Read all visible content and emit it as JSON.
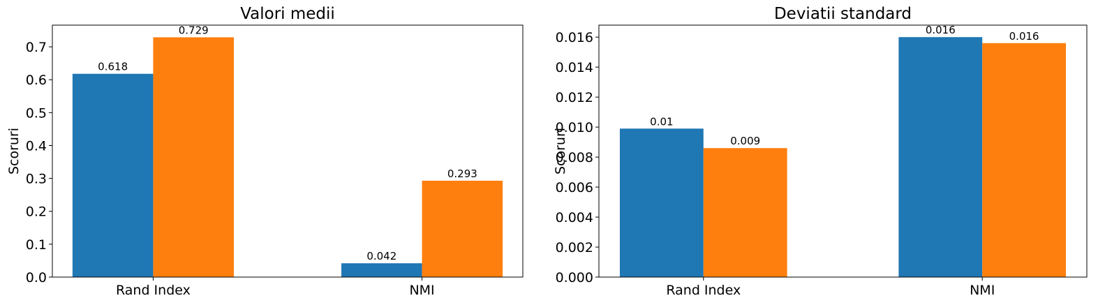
{
  "chart_data": [
    {
      "type": "bar",
      "title": "Valori medii",
      "xlabel": "",
      "ylabel": "Scoruri",
      "categories": [
        "Rand Index",
        "NMI"
      ],
      "series": [
        {
          "values": [
            0.618,
            0.042
          ],
          "labels": [
            "0.618",
            "0.042"
          ],
          "color": "#1f77b4"
        },
        {
          "values": [
            0.729,
            0.293
          ],
          "labels": [
            "0.729",
            "0.293"
          ],
          "color": "#ff7f0e"
        }
      ],
      "ylim": [
        0,
        0.766
      ],
      "yticks": [
        0.0,
        0.1,
        0.2,
        0.3,
        0.4,
        0.5,
        0.6,
        0.7
      ],
      "ytick_labels": [
        "0.0",
        "0.1",
        "0.2",
        "0.3",
        "0.4",
        "0.5",
        "0.6",
        "0.7"
      ],
      "grid": false,
      "legend": "none"
    },
    {
      "type": "bar",
      "title": "Deviatii standard",
      "xlabel": "",
      "ylabel": "Scoruri",
      "categories": [
        "Rand Index",
        "NMI"
      ],
      "series": [
        {
          "values": [
            0.0099,
            0.016
          ],
          "labels": [
            "0.01",
            "0.016"
          ],
          "color": "#1f77b4"
        },
        {
          "values": [
            0.0086,
            0.0156
          ],
          "labels": [
            "0.009",
            "0.016"
          ],
          "color": "#ff7f0e"
        }
      ],
      "ylim": [
        0,
        0.0168
      ],
      "yticks": [
        0.0,
        0.002,
        0.004,
        0.006,
        0.008,
        0.01,
        0.012,
        0.014,
        0.016
      ],
      "ytick_labels": [
        "0.000",
        "0.002",
        "0.004",
        "0.006",
        "0.008",
        "0.010",
        "0.012",
        "0.014",
        "0.016"
      ],
      "grid": false,
      "legend": "none"
    }
  ]
}
